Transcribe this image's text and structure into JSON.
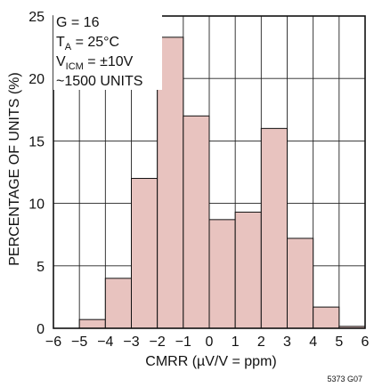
{
  "chart_data": {
    "type": "bar",
    "bins": [
      {
        "x0": -6,
        "x1": -5,
        "value": 0
      },
      {
        "x0": -5,
        "x1": -4,
        "value": 0.7
      },
      {
        "x0": -4,
        "x1": -3,
        "value": 4.0
      },
      {
        "x0": -3,
        "x1": -2,
        "value": 12.0
      },
      {
        "x0": -2,
        "x1": -1,
        "value": 23.3
      },
      {
        "x0": -1,
        "x1": 0,
        "value": 17.0
      },
      {
        "x0": 0,
        "x1": 1,
        "value": 8.7
      },
      {
        "x0": 1,
        "x1": 2,
        "value": 9.3
      },
      {
        "x0": 2,
        "x1": 3,
        "value": 16.0
      },
      {
        "x0": 3,
        "x1": 4,
        "value": 7.2
      },
      {
        "x0": 4,
        "x1": 5,
        "value": 1.7
      },
      {
        "x0": 5,
        "x1": 6,
        "value": 0.15
      }
    ],
    "xlabel": "CMRR (µV/V = ppm)",
    "ylabel": "PERCENTAGE OF UNITS (%)",
    "xlim": [
      -6,
      6
    ],
    "ylim": [
      0,
      25
    ],
    "xticks": [
      -6,
      -5,
      -4,
      -3,
      -2,
      -1,
      0,
      1,
      2,
      3,
      4,
      5,
      6
    ],
    "yticks": [
      0,
      5,
      10,
      15,
      20,
      25
    ],
    "grid": true,
    "bar_color": "#e8c3bf",
    "annotations": {
      "gain": "G = 16",
      "temp_prefix": "T",
      "temp_sub": "A",
      "temp_suffix": " = 25°C",
      "vicm_prefix": "V",
      "vicm_sub": "ICM",
      "vicm_suffix": " = ±10V",
      "units": "~1500 UNITS"
    },
    "figure_id": "5373 G07"
  }
}
